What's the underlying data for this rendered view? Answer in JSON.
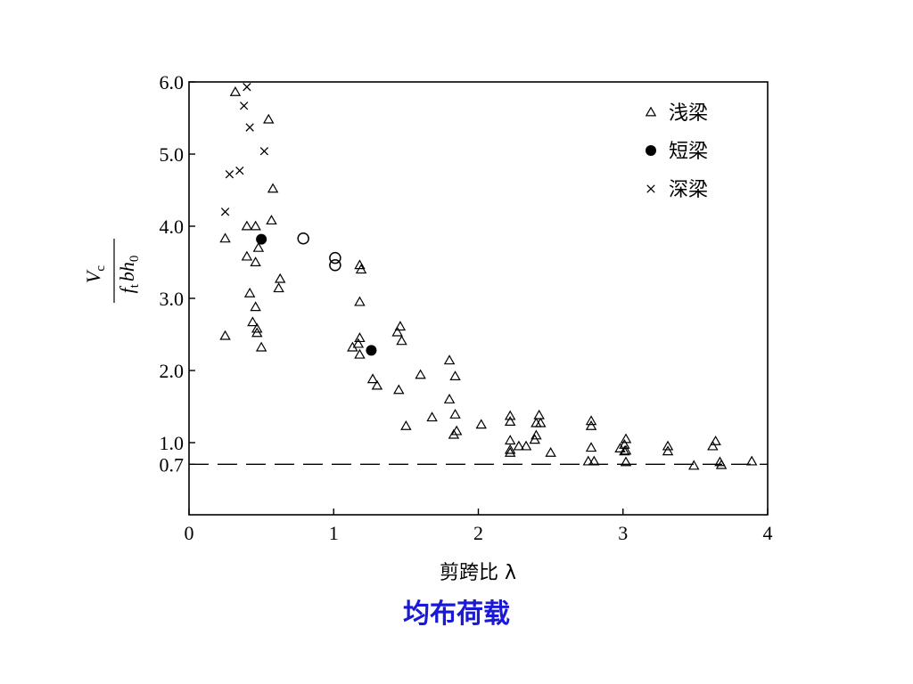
{
  "chart_data": {
    "type": "scatter",
    "xlabel": "剪跨比 λ",
    "ylabel": {
      "num_main": "V",
      "num_sub": "c",
      "den_f": "f",
      "den_t": "t",
      "den_b": "b",
      "den_h": "h",
      "den_0": "0"
    },
    "xlim": [
      0,
      4
    ],
    "ylim": [
      0,
      6.0
    ],
    "xticks": [
      "0",
      "1",
      "2",
      "3",
      "4"
    ],
    "yticks": [
      {
        "value": 6.0,
        "label": "6.0"
      },
      {
        "value": 5.0,
        "label": "5.0"
      },
      {
        "value": 4.0,
        "label": "4.0"
      },
      {
        "value": 3.0,
        "label": "3.0"
      },
      {
        "value": 2.0,
        "label": "2.0"
      },
      {
        "value": 1.0,
        "label": "1.0"
      },
      {
        "value": 0.7,
        "label": "0.7"
      }
    ],
    "reference_line": {
      "y": 0.7,
      "style": "dashed"
    },
    "legend": {
      "placement": "top-right"
    },
    "series": [
      {
        "name": "浅梁",
        "marker": "triangle-open",
        "points": [
          [
            0.25,
            3.83
          ],
          [
            0.25,
            2.48
          ],
          [
            0.32,
            5.86
          ],
          [
            0.4,
            4.0
          ],
          [
            0.46,
            4.0
          ],
          [
            0.4,
            3.58
          ],
          [
            0.46,
            3.5
          ],
          [
            0.48,
            3.7
          ],
          [
            0.42,
            3.07
          ],
          [
            0.46,
            2.88
          ],
          [
            0.44,
            2.67
          ],
          [
            0.47,
            2.58
          ],
          [
            0.47,
            2.52
          ],
          [
            0.5,
            2.32
          ],
          [
            0.55,
            5.48
          ],
          [
            0.58,
            4.52
          ],
          [
            0.57,
            4.08
          ],
          [
            0.63,
            3.27
          ],
          [
            0.62,
            3.14
          ],
          [
            1.18,
            3.46
          ],
          [
            1.19,
            3.4
          ],
          [
            1.18,
            2.95
          ],
          [
            1.18,
            2.45
          ],
          [
            1.17,
            2.37
          ],
          [
            1.13,
            2.32
          ],
          [
            1.18,
            2.22
          ],
          [
            1.27,
            1.88
          ],
          [
            1.3,
            1.79
          ],
          [
            1.46,
            2.61
          ],
          [
            1.44,
            2.53
          ],
          [
            1.47,
            2.41
          ],
          [
            1.45,
            1.73
          ],
          [
            1.5,
            1.23
          ],
          [
            1.6,
            1.94
          ],
          [
            1.68,
            1.35
          ],
          [
            1.8,
            2.14
          ],
          [
            1.8,
            1.6
          ],
          [
            1.84,
            1.92
          ],
          [
            1.84,
            1.39
          ],
          [
            1.85,
            1.16
          ],
          [
            1.83,
            1.11
          ],
          [
            2.02,
            1.25
          ],
          [
            2.22,
            1.37
          ],
          [
            2.22,
            1.29
          ],
          [
            2.22,
            1.03
          ],
          [
            2.22,
            0.9
          ],
          [
            2.22,
            0.86
          ],
          [
            2.28,
            0.95
          ],
          [
            2.33,
            0.95
          ],
          [
            2.39,
            1.04
          ],
          [
            2.4,
            1.1
          ],
          [
            2.4,
            1.27
          ],
          [
            2.42,
            1.38
          ],
          [
            2.43,
            1.27
          ],
          [
            2.5,
            0.86
          ],
          [
            2.76,
            0.74
          ],
          [
            2.78,
            0.93
          ],
          [
            2.78,
            1.23
          ],
          [
            2.78,
            1.3
          ],
          [
            2.8,
            0.74
          ],
          [
            2.98,
            0.92
          ],
          [
            3.01,
            0.88
          ],
          [
            3.02,
            1.05
          ],
          [
            3.01,
            0.97
          ],
          [
            3.02,
            0.89
          ],
          [
            3.02,
            0.73
          ],
          [
            3.31,
            0.95
          ],
          [
            3.31,
            0.88
          ],
          [
            3.49,
            0.68
          ],
          [
            3.62,
            0.95
          ],
          [
            3.64,
            1.02
          ],
          [
            3.67,
            0.73
          ],
          [
            3.68,
            0.69
          ],
          [
            3.89,
            0.74
          ]
        ]
      },
      {
        "name": "短梁",
        "marker": "circle-filled",
        "points": [
          [
            0.5,
            3.82
          ],
          [
            1.26,
            2.28
          ]
        ]
      },
      {
        "name": "深梁",
        "marker": "cross",
        "points": [
          [
            0.4,
            5.93
          ],
          [
            0.38,
            5.67
          ],
          [
            0.42,
            5.37
          ],
          [
            0.28,
            4.72
          ],
          [
            0.35,
            4.77
          ],
          [
            0.25,
            4.2
          ],
          [
            0.52,
            5.04
          ]
        ]
      },
      {
        "name": "",
        "marker": "circle-open",
        "points": [
          [
            0.79,
            3.83
          ],
          [
            1.01,
            3.56
          ],
          [
            1.01,
            3.46
          ]
        ]
      }
    ]
  },
  "caption": "均布荷载"
}
